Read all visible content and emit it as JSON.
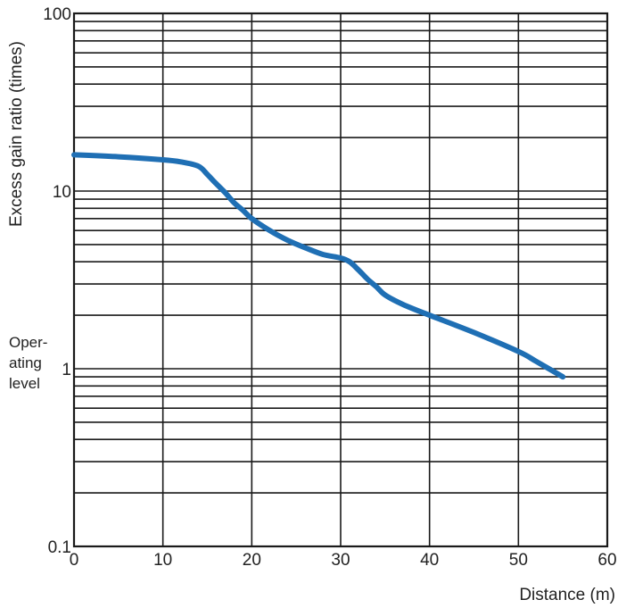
{
  "chart_data": {
    "type": "line",
    "title": "",
    "xlabel": "Distance (m)",
    "ylabel": "Excess gain ratio (times)",
    "xlim": [
      0,
      60
    ],
    "ylim": [
      0.1,
      100
    ],
    "yscale": "log",
    "grid": true,
    "x_ticks": [
      "0",
      "10",
      "20",
      "30",
      "40",
      "50",
      "60"
    ],
    "y_ticks": [
      "0.1",
      "1",
      "10",
      "100"
    ],
    "annotation": {
      "lines": [
        "Oper-",
        "ating",
        "level"
      ],
      "at_y": 1
    },
    "line_color": "#1f6fb4",
    "series": [
      {
        "x": [
          0,
          5,
          10,
          12,
          14,
          15,
          16,
          17,
          18,
          19,
          20,
          22,
          24,
          26,
          28,
          30,
          31,
          32,
          33,
          34,
          35,
          37,
          40,
          45,
          50,
          52,
          55
        ],
        "y": [
          16,
          15.6,
          15,
          14.6,
          13.8,
          12.4,
          11,
          9.8,
          8.6,
          7.8,
          7.0,
          6.0,
          5.3,
          4.8,
          4.4,
          4.2,
          4.0,
          3.6,
          3.2,
          2.9,
          2.6,
          2.3,
          2.0,
          1.6,
          1.25,
          1.1,
          0.9
        ]
      }
    ]
  }
}
